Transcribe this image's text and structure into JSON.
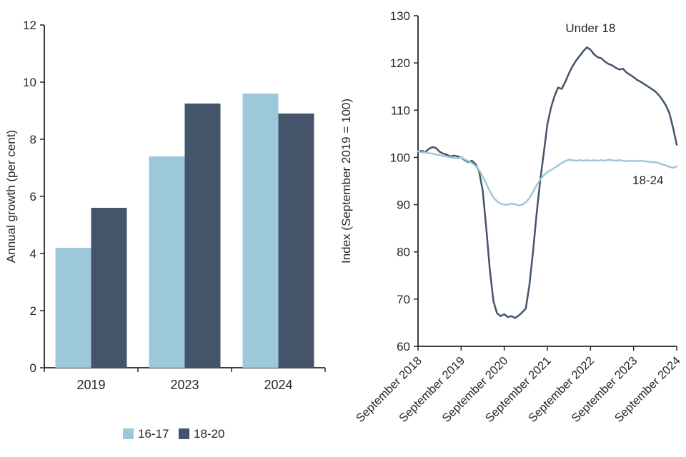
{
  "figure": {
    "background": "#ffffff",
    "text_color": "#262626",
    "axis_color": "#262626"
  },
  "chart_data": [
    {
      "type": "bar",
      "title": "",
      "ylabel": "Annual growth (per cent)",
      "ylim": [
        0,
        12
      ],
      "yticks": [
        0,
        2,
        4,
        6,
        8,
        10,
        12
      ],
      "categories": [
        "2019",
        "2023",
        "2024"
      ],
      "series": [
        {
          "name": "16-17",
          "color": "#9CC8DA",
          "values": [
            4.2,
            7.4,
            9.6
          ]
        },
        {
          "name": "18-20",
          "color": "#44546A",
          "values": [
            5.6,
            9.25,
            8.9
          ]
        }
      ],
      "legend_position": "bottom",
      "grid": false
    },
    {
      "type": "line",
      "title": "",
      "ylabel": "Index (September 2019 = 100)",
      "ylim": [
        60,
        130
      ],
      "yticks": [
        60,
        70,
        80,
        90,
        100,
        110,
        120,
        130
      ],
      "x_unit": "month",
      "x_tick_labels": [
        "September 2018",
        "September 2019",
        "September 2020",
        "September 2021",
        "September 2022",
        "September 2023",
        "September 2024"
      ],
      "x_tick_indices": [
        0,
        12,
        24,
        36,
        48,
        60,
        72
      ],
      "series": [
        {
          "name": "Under 18",
          "color": "#44546A",
          "values": [
            101.2,
            101.4,
            101.1,
            101.8,
            102.2,
            102.0,
            101.2,
            100.8,
            100.6,
            100.2,
            100.4,
            100.2,
            100.0,
            99.4,
            99.0,
            99.3,
            98.6,
            97.0,
            93.0,
            85.0,
            76.0,
            69.5,
            67.0,
            66.4,
            66.8,
            66.2,
            66.4,
            66.0,
            66.5,
            67.2,
            68.0,
            73.0,
            80.0,
            88.0,
            95.0,
            101.0,
            107.0,
            110.5,
            113.0,
            114.8,
            114.5,
            116.0,
            117.8,
            119.3,
            120.5,
            121.5,
            122.5,
            123.3,
            122.8,
            121.8,
            121.2,
            121.0,
            120.3,
            119.8,
            119.5,
            119.0,
            118.6,
            118.8,
            118.0,
            117.5,
            117.0,
            116.4,
            116.0,
            115.5,
            115.0,
            114.5,
            114.0,
            113.2,
            112.2,
            111.0,
            109.3,
            106.2,
            102.7
          ]
        },
        {
          "name": "18-24",
          "color": "#9CC8DA",
          "values": [
            101.3,
            101.1,
            101.0,
            100.9,
            100.8,
            100.6,
            100.5,
            100.3,
            100.2,
            100.0,
            99.9,
            99.8,
            100.0,
            99.6,
            99.2,
            98.8,
            98.2,
            97.3,
            96.0,
            94.4,
            92.8,
            91.5,
            90.7,
            90.2,
            90.0,
            90.0,
            90.2,
            90.1,
            89.8,
            90.0,
            90.5,
            91.4,
            92.7,
            94.1,
            95.3,
            96.2,
            96.9,
            97.3,
            97.8,
            98.3,
            98.8,
            99.2,
            99.5,
            99.4,
            99.3,
            99.4,
            99.3,
            99.4,
            99.3,
            99.4,
            99.3,
            99.4,
            99.3,
            99.5,
            99.4,
            99.3,
            99.4,
            99.3,
            99.2,
            99.3,
            99.3,
            99.2,
            99.3,
            99.2,
            99.1,
            99.0,
            99.0,
            98.8,
            98.5,
            98.3,
            98.0,
            97.8,
            98.1
          ]
        }
      ],
      "annotations": [
        {
          "text": "Under 18",
          "x_index": 48,
          "value": 126.5
        },
        {
          "text": "18-24",
          "x_index": 64,
          "value": 94.3
        }
      ],
      "grid": false
    }
  ]
}
